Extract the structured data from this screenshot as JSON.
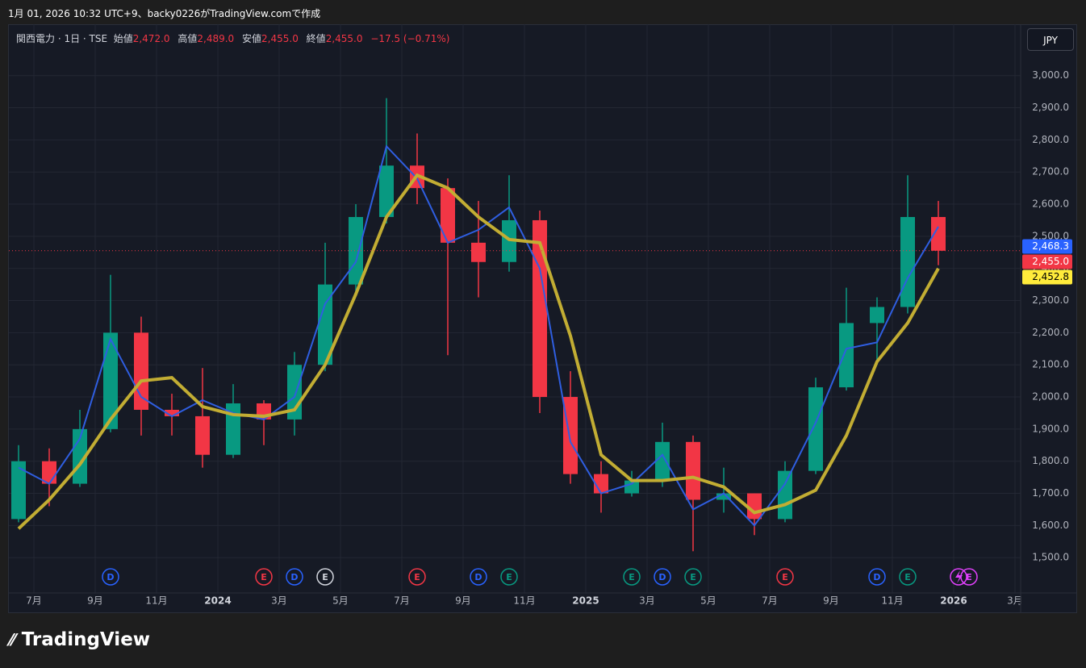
{
  "header": {
    "caption": "1月 01, 2026 10:32 UTC+9、backy0226がTradingView.comで作成",
    "symbol": "関西電力 · 1日 · TSE",
    "open_label": "始値",
    "open": {
      "value": 2472.0,
      "label": "2,472.0"
    },
    "high_label": "高値",
    "high": {
      "value": 2489.0,
      "label": "2,489.0"
    },
    "low_label": "安値",
    "low": {
      "value": 2455.0,
      "label": "2,455.0"
    },
    "close_label": "終値",
    "close": {
      "value": 2455.0,
      "label": "2,455.0"
    },
    "change": "−17.5 (−0.71%)",
    "currency": "JPY",
    "brand": "TradingView"
  },
  "chart_data": {
    "type": "candlestick",
    "x": [
      "2023-06",
      "2023-07",
      "2023-08",
      "2023-09",
      "2023-10",
      "2023-11",
      "2023-12",
      "2024-01",
      "2024-02",
      "2024-03",
      "2024-04",
      "2024-05",
      "2024-06",
      "2024-07",
      "2024-08",
      "2024-09",
      "2024-10",
      "2024-11",
      "2024-12",
      "2025-01",
      "2025-02",
      "2025-03",
      "2025-04",
      "2025-05",
      "2025-06",
      "2025-07",
      "2025-08",
      "2025-09",
      "2025-10",
      "2025-11",
      "2025-12"
    ],
    "open": [
      1620,
      1800,
      1730,
      1900,
      2200,
      1960,
      1940,
      1820,
      1980,
      1930,
      2100,
      2350,
      2560,
      2720,
      2650,
      2480,
      2420,
      2550,
      2000,
      1760,
      1700,
      1740,
      1860,
      1680,
      1700,
      1620,
      1770,
      2030,
      2230,
      2280,
      2560
    ],
    "high": [
      1850,
      1840,
      1960,
      2380,
      2250,
      2010,
      2090,
      2040,
      1990,
      2140,
      2480,
      2600,
      2930,
      2820,
      2680,
      2610,
      2690,
      2580,
      2080,
      1800,
      1770,
      1920,
      1880,
      1780,
      1700,
      1800,
      2060,
      2340,
      2310,
      2690,
      2610
    ],
    "low": [
      1610,
      1660,
      1720,
      1890,
      1880,
      1880,
      1780,
      1810,
      1850,
      1880,
      2080,
      2320,
      2540,
      2600,
      2130,
      2310,
      2390,
      1950,
      1730,
      1640,
      1690,
      1720,
      1520,
      1640,
      1570,
      1610,
      1760,
      2020,
      2100,
      2260,
      2410
    ],
    "close": [
      1800,
      1730,
      1900,
      2200,
      1960,
      1940,
      1820,
      1980,
      1930,
      2100,
      2350,
      2560,
      2720,
      2650,
      2480,
      2420,
      2550,
      2000,
      1760,
      1700,
      1740,
      1860,
      1680,
      1700,
      1620,
      1770,
      2030,
      2230,
      2280,
      2560,
      2455
    ],
    "up_color": "#089981",
    "down_color": "#f23645",
    "lines": [
      {
        "color": "#2f5ee0",
        "values": [
          1780,
          1730,
          1870,
          2180,
          2000,
          1940,
          1990,
          1950,
          1930,
          2000,
          2290,
          2420,
          2780,
          2680,
          2480,
          2520,
          2590,
          2400,
          1860,
          1700,
          1730,
          1820,
          1650,
          1700,
          1600,
          1730,
          1920,
          2150,
          2170,
          2370,
          2530
        ]
      },
      {
        "color": "#c2ad33",
        "values": [
          1590,
          1680,
          1790,
          1930,
          2050,
          2060,
          1970,
          1945,
          1940,
          1960,
          2100,
          2320,
          2560,
          2690,
          2650,
          2560,
          2490,
          2480,
          2190,
          1820,
          1740,
          1740,
          1750,
          1720,
          1640,
          1665,
          1710,
          1880,
          2110,
          2230,
          2400
        ]
      }
    ],
    "ylim": [
      1390,
      3160
    ],
    "yticks": [
      {
        "value": 1500,
        "label": "1,500.0"
      },
      {
        "value": 1600,
        "label": "1,600.0"
      },
      {
        "value": 1700,
        "label": "1,700.0"
      },
      {
        "value": 1800,
        "label": "1,800.0"
      },
      {
        "value": 1900,
        "label": "1,900.0"
      },
      {
        "value": 2000,
        "label": "2,000.0"
      },
      {
        "value": 2100,
        "label": "2,100.0"
      },
      {
        "value": 2200,
        "label": "2,200.0"
      },
      {
        "value": 2300,
        "label": "2,300.0"
      },
      {
        "value": 2400,
        "label": "2,400.0"
      },
      {
        "value": 2500,
        "label": "2,500.0"
      },
      {
        "value": 2600,
        "label": "2,600.0"
      },
      {
        "value": 2700,
        "label": "2,700.0"
      },
      {
        "value": 2800,
        "label": "2,800.0"
      },
      {
        "value": 2900,
        "label": "2,900.0"
      },
      {
        "value": 3000,
        "label": "3,000.0"
      }
    ],
    "xticks": [
      {
        "value": "2023-07",
        "label": "7月"
      },
      {
        "value": "2023-09",
        "label": "9月"
      },
      {
        "value": "2023-11",
        "label": "11月"
      },
      {
        "value": "2024-01",
        "label": "2024"
      },
      {
        "value": "2024-03",
        "label": "3月"
      },
      {
        "value": "2024-05",
        "label": "5月"
      },
      {
        "value": "2024-07",
        "label": "7月"
      },
      {
        "value": "2024-09",
        "label": "9月"
      },
      {
        "value": "2024-11",
        "label": "11月"
      },
      {
        "value": "2025-01",
        "label": "2025"
      },
      {
        "value": "2025-03",
        "label": "3月"
      },
      {
        "value": "2025-05",
        "label": "5月"
      },
      {
        "value": "2025-07",
        "label": "7月"
      },
      {
        "value": "2025-09",
        "label": "9月"
      },
      {
        "value": "2025-11",
        "label": "11月"
      },
      {
        "value": "2026-01",
        "label": "2026"
      },
      {
        "value": "2026-03",
        "label": "3月"
      }
    ],
    "last_values": [
      {
        "value": 2468.3,
        "label": "2,468.3",
        "color": "#2962ff"
      },
      {
        "value": 2455.0,
        "label": "2,455.0",
        "color": "#f23645"
      },
      {
        "value": 2452.8,
        "label": "2,452.8",
        "color": "#ffeb3b"
      }
    ],
    "events": [
      {
        "x": "2023-09",
        "label": "D",
        "color": "#2962ff"
      },
      {
        "x": "2024-02",
        "label": "E",
        "color": "#f23645"
      },
      {
        "x": "2024-03",
        "label": "D",
        "color": "#2962ff"
      },
      {
        "x": "2024-04",
        "label": "E",
        "color": "#d1d4dc"
      },
      {
        "x": "2024-07",
        "label": "E",
        "color": "#f23645"
      },
      {
        "x": "2024-09",
        "label": "D",
        "color": "#2962ff"
      },
      {
        "x": "2024-10",
        "label": "E",
        "color": "#089981"
      },
      {
        "x": "2025-02",
        "label": "E",
        "color": "#089981"
      },
      {
        "x": "2025-03",
        "label": "D",
        "color": "#2962ff"
      },
      {
        "x": "2025-04",
        "label": "E",
        "color": "#089981"
      },
      {
        "x": "2025-07",
        "label": "E",
        "color": "#f23645"
      },
      {
        "x": "2025-10",
        "label": "D",
        "color": "#2962ff"
      },
      {
        "x": "2025-11",
        "label": "E",
        "color": "#089981"
      },
      {
        "x": "2026-01",
        "label": "E",
        "color": "#e040fb"
      }
    ]
  }
}
